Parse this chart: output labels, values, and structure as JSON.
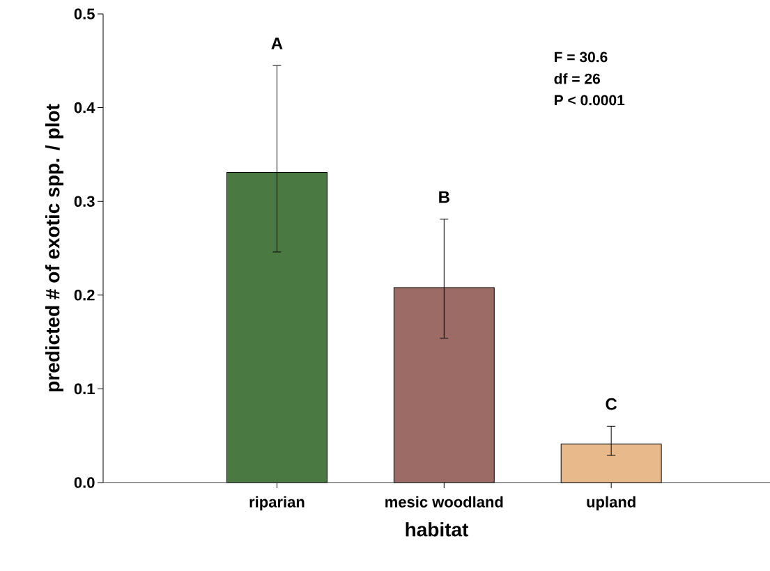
{
  "chart_data": {
    "type": "bar",
    "xlabel": "habitat",
    "ylabel": "predicted # of exotic spp. / plot",
    "categories": [
      "riparian",
      "mesic woodland",
      "upland"
    ],
    "values": [
      0.331,
      0.208,
      0.041
    ],
    "colors": [
      "#4a7a42",
      "#9c6b65",
      "#e8b98a"
    ],
    "errors": [
      [
        0.246,
        0.445
      ],
      [
        0.154,
        0.281
      ],
      [
        0.029,
        0.06
      ]
    ],
    "ylim": [
      0,
      0.5
    ],
    "yticks": [
      {
        "value": 0,
        "label": "0.0"
      },
      {
        "value": 0.1,
        "label": "0.1"
      },
      {
        "value": 0.2,
        "label": "0.2"
      },
      {
        "value": 0.3,
        "label": "0.3"
      },
      {
        "value": 0.4,
        "label": "0.4"
      },
      {
        "value": 0.5,
        "label": "0.5"
      }
    ],
    "annotations": [
      "A",
      "B",
      "C",
      "F = 30.6",
      "df = 26",
      "P < 0.0001"
    ]
  }
}
